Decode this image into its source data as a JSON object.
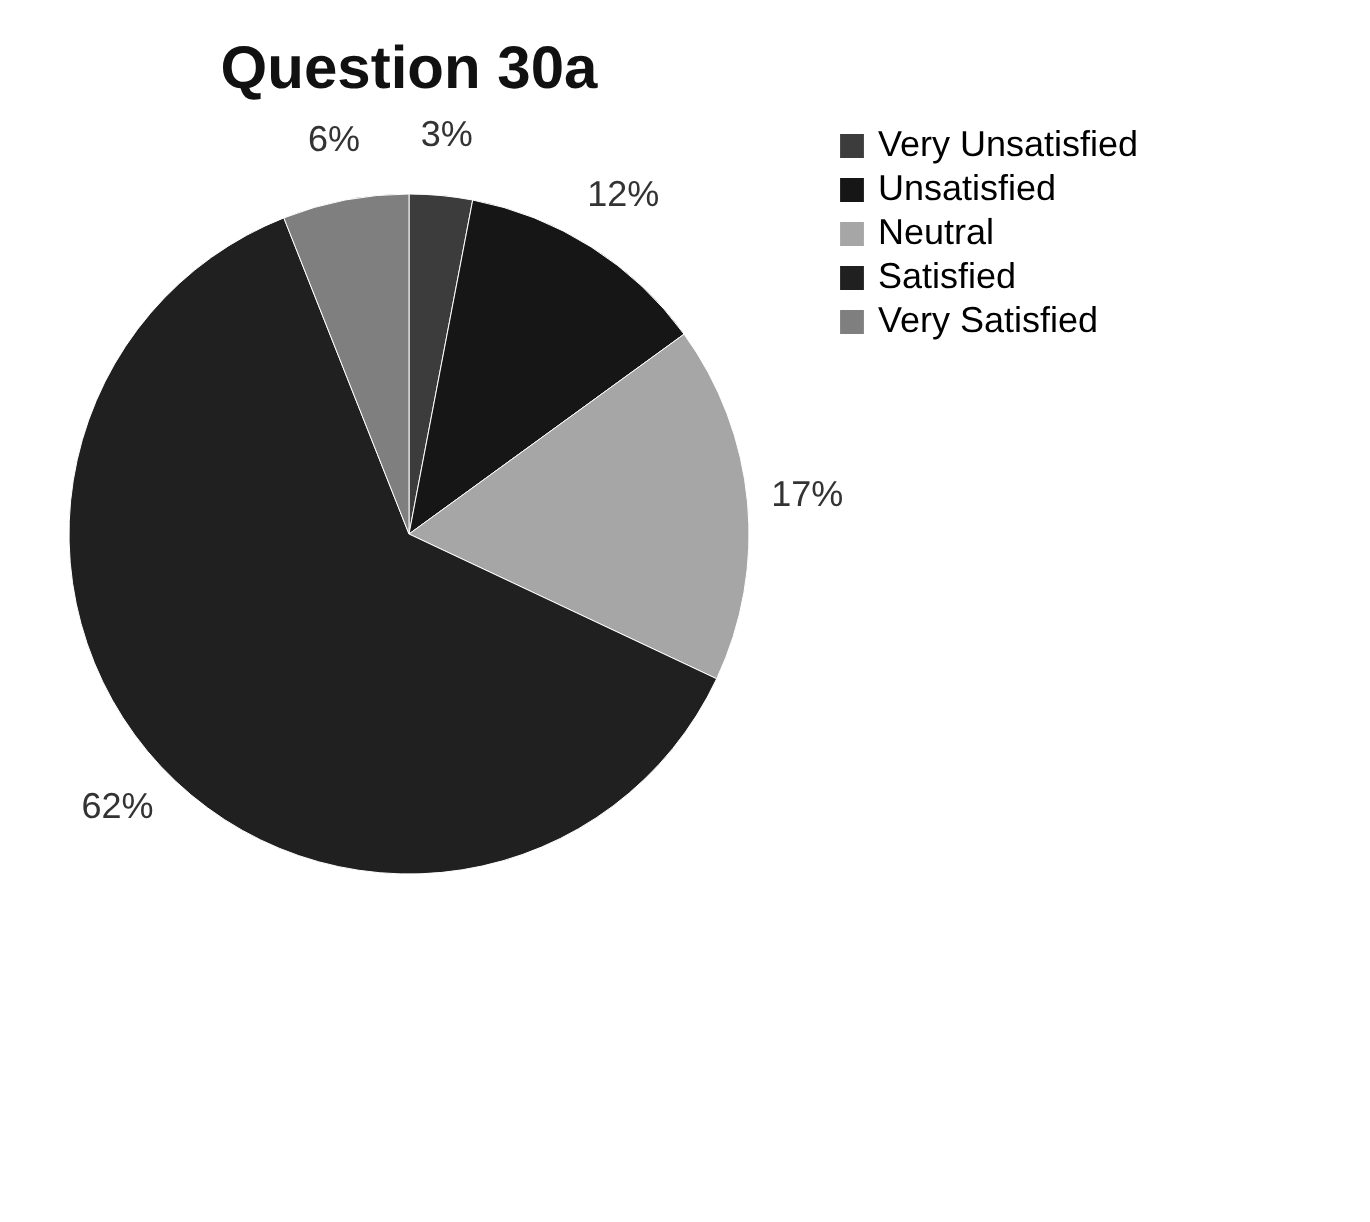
{
  "chart_data": {
    "type": "pie",
    "title": "Question 30a",
    "categories": [
      "Very Unsatisfied",
      "Unsatisfied",
      "Neutral",
      "Satisfied",
      "Very Satisfied"
    ],
    "values": [
      3,
      12,
      17,
      62,
      6
    ],
    "colors": [
      "#3c3c3c",
      "#161616",
      "#a6a6a6",
      "#202020",
      "#7f7f7f"
    ],
    "value_labels": [
      "3%",
      "12%",
      "17%",
      "62%",
      "6%"
    ],
    "legend": "right"
  }
}
